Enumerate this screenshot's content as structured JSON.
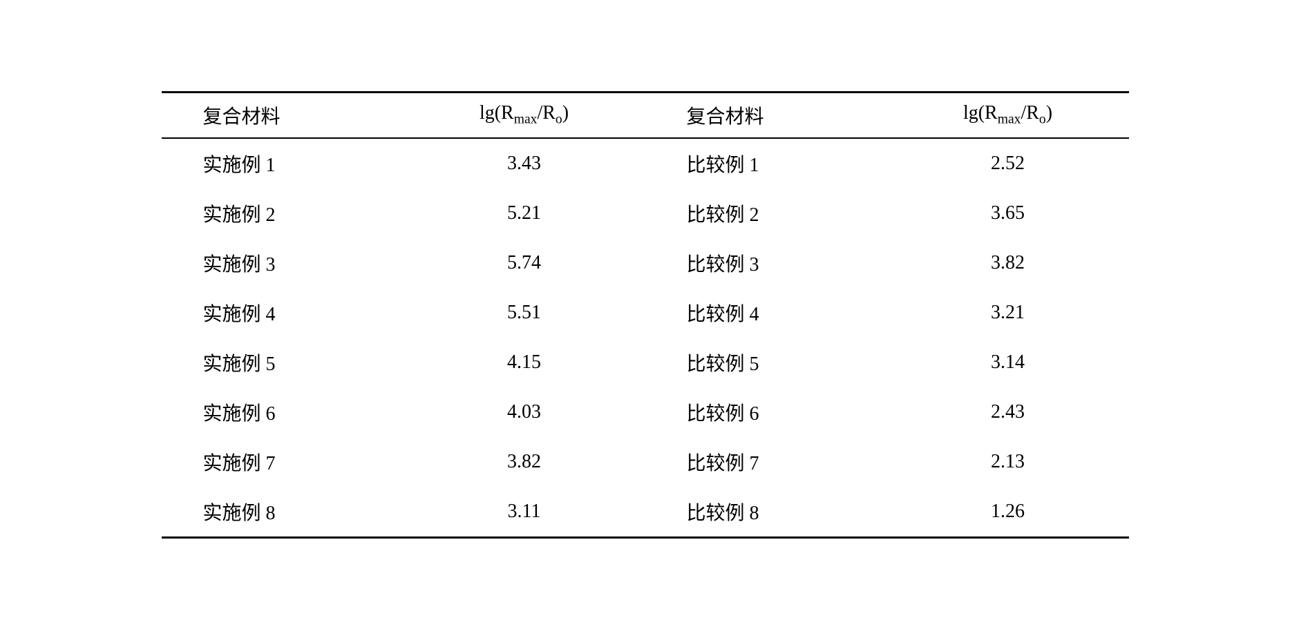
{
  "table": {
    "type": "table",
    "font_size_pt": 28,
    "text_color": "#000000",
    "background_color": "#ffffff",
    "border_color": "#000000",
    "border_top_width": 3,
    "border_header_bottom_width": 2,
    "border_bottom_width": 3,
    "columns": [
      {
        "label": "复合材料",
        "align": "left",
        "width_pct": 25
      },
      {
        "label": "lg(Rmax/Ro)",
        "align": "center",
        "width_pct": 25
      },
      {
        "label": "复合材料",
        "align": "left",
        "width_pct": 25
      },
      {
        "label": "lg(Rmax/Ro)",
        "align": "center",
        "width_pct": 25
      }
    ],
    "header_ratio_label_prefix": "lg(R",
    "header_ratio_label_sub1": "max",
    "header_ratio_label_mid": "/R",
    "header_ratio_label_sub2": "o",
    "header_ratio_label_suffix": ")",
    "header_material_label": "复合材料",
    "rows": [
      {
        "c1": "实施例 1",
        "c2": "3.43",
        "c3": "比较例 1",
        "c4": "2.52"
      },
      {
        "c1": "实施例 2",
        "c2": "5.21",
        "c3": "比较例 2",
        "c4": "3.65"
      },
      {
        "c1": "实施例 3",
        "c2": "5.74",
        "c3": "比较例 3",
        "c4": "3.82"
      },
      {
        "c1": "实施例 4",
        "c2": "5.51",
        "c3": "比较例 4",
        "c4": "3.21"
      },
      {
        "c1": "实施例 5",
        "c2": "4.15",
        "c3": "比较例 5",
        "c4": "3.14"
      },
      {
        "c1": "实施例 6",
        "c2": "4.03",
        "c3": "比较例 6",
        "c4": "2.43"
      },
      {
        "c1": "实施例 7",
        "c2": "3.82",
        "c3": "比较例 7",
        "c4": "2.13"
      },
      {
        "c1": "实施例 8",
        "c2": "3.11",
        "c3": "比较例 8",
        "c4": "1.26"
      }
    ]
  }
}
